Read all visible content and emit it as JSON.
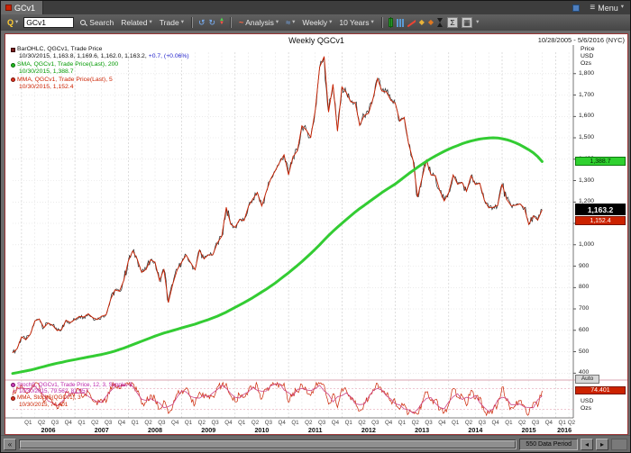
{
  "window": {
    "tab_label": "GCv1",
    "menu_label": "Menu"
  },
  "toolbar": {
    "quote_label": "Q",
    "symbol_value": "GCv1",
    "search_label": "Search",
    "related_label": "Related",
    "trade_label": "Trade",
    "analysis_label": "Analysis",
    "interval_value": "Weekly",
    "range_value": "10 Years"
  },
  "icons": {
    "menu": "≡",
    "caret_down": "▾",
    "back": "↺",
    "forward": "↻",
    "up_arrow": "▲",
    "down_arrow": "▼",
    "analysis_wave": "~",
    "compare": "≈",
    "diamond": "◆",
    "sum": "Σ",
    "grid": "▦",
    "fast_left": "«",
    "step_left": "◂",
    "step_right": "▸"
  },
  "chart_header": {
    "title": "Weekly QGCv1",
    "date_range": "10/28/2005 - 5/6/2016 (NYC)"
  },
  "legend": {
    "line1": "BarOHLC, QGCv1, Trade Price",
    "line2": "10/30/2015, 1,163.8, 1,169.6, 1,162.0, 1,163.2,",
    "line2_change": "+0.7, (+0.06%)",
    "line3": "SMA, QGCv1, Trade Price(Last), 200",
    "line4": "10/30/2015, 1,388.7",
    "line5": "MMA, QGCv1, Trade Price(Last), 5",
    "line6": "10/30/2015, 1,152.4"
  },
  "stoch_legend": {
    "line1": "StochS, QGCv1, Trade Price, 12, 3, Simple, 3",
    "line2": "10/30/2015, 79.562, 81.657",
    "line3": "MMA, StochS(QGCv1), 3",
    "line4": "10/30/2015, 74.401"
  },
  "price_axis": {
    "units": [
      "Price",
      "USD",
      "Ozs"
    ],
    "ticks": [
      "1,800",
      "1,700",
      "1,600",
      "1,500",
      "1,400",
      "1,300",
      "1,200",
      "1,100",
      "1,000",
      "900",
      "800",
      "700",
      "600",
      "500",
      "400"
    ],
    "auto_label": "Auto",
    "last_sma": "1,388.7",
    "last_price": "1,163.2",
    "last_mma": "1,152.4"
  },
  "stoch_axis": {
    "last_value": "74.401",
    "units": [
      "USD",
      "Ozs"
    ]
  },
  "x_axis": {
    "quarters": [
      "Q1",
      "Q2",
      "Q3",
      "Q4"
    ],
    "years": [
      "2006",
      "2007",
      "2008",
      "2009",
      "2010",
      "2011",
      "2012",
      "2013",
      "2014",
      "2015",
      "2016"
    ],
    "final_quarters": [
      "Q1",
      "Q2"
    ]
  },
  "status_bar": {
    "data_period": "550 Data Period"
  },
  "colors": {
    "price_bars": "#2a2a2a",
    "ma5": "#cc2200",
    "sma200": "#33cc33",
    "stoch": "#cc2200",
    "stoch_ma": "#cc4488",
    "change_up": "#2222cc",
    "flag_green_bg": "#2fd12f",
    "flag_red_bg": "#cc2200",
    "flag_black_bg": "#000000"
  },
  "chart_data": {
    "type": "line",
    "title": "Weekly QGCv1",
    "x_start": "10/28/2005",
    "x_end": "5/6/2016",
    "price_ylim": [
      400,
      1800
    ],
    "stoch_ylim": [
      0,
      100
    ],
    "grid": true,
    "last_bar": {
      "date": "10/30/2015",
      "open": 1163.8,
      "high": 1169.6,
      "low": 1162.0,
      "close": 1163.2,
      "change": 0.7,
      "change_pct": 0.06,
      "sma200": 1388.7,
      "mma5": 1152.4,
      "stoch": 79.562,
      "stoch_signal": 81.657,
      "stoch_mma": 74.401
    },
    "series": [
      {
        "name": "QGCv1 Trade Price (monthly samples Nov-2005..Oct-2015)",
        "values": [
          495,
          513,
          569,
          556,
          582,
          644,
          653,
          613,
          634,
          623,
          599,
          603,
          647,
          636,
          651,
          665,
          662,
          677,
          659,
          650,
          666,
          672,
          743,
          789,
          783,
          834,
          923,
          971,
          933,
          871,
          885,
          930,
          918,
          833,
          884,
          730,
          816,
          884,
          919,
          952,
          916,
          883,
          975,
          934,
          953,
          953,
          1008,
          1040,
          1175,
          1096,
          1081,
          1118,
          1113,
          1179,
          1215,
          1244,
          1181,
          1248,
          1307,
          1346,
          1385,
          1421,
          1327,
          1411,
          1439,
          1556,
          1536,
          1502,
          1628,
          1830,
          1880,
          1620,
          1750,
          1531,
          1738,
          1711,
          1668,
          1664,
          1558,
          1604,
          1615,
          1685,
          1776,
          1719,
          1714,
          1675,
          1661,
          1578,
          1595,
          1472,
          1394,
          1224,
          1312,
          1395,
          1327,
          1323,
          1253,
          1205,
          1244,
          1326,
          1283,
          1291,
          1250,
          1322,
          1282,
          1287,
          1208,
          1173,
          1175,
          1184,
          1283,
          1213,
          1183,
          1184,
          1191,
          1171,
          1095,
          1135,
          1115,
          1163
        ]
      },
      {
        "name": "SMA 200-week",
        "values": [
          398,
          402,
          406,
          410,
          414,
          419,
          425,
          430,
          436,
          441,
          446,
          450,
          455,
          459,
          463,
          467,
          471,
          475,
          479,
          483,
          487,
          492,
          497,
          503,
          510,
          517,
          525,
          533,
          541,
          549,
          557,
          565,
          573,
          580,
          587,
          593,
          599,
          605,
          611,
          617,
          623,
          629,
          636,
          643,
          650,
          658,
          666,
          675,
          685,
          696,
          707,
          718,
          729,
          741,
          753,
          766,
          779,
          792,
          806,
          821,
          837,
          853,
          869,
          886,
          903,
          921,
          940,
          959,
          979,
          1000,
          1022,
          1043,
          1063,
          1082,
          1100,
          1118,
          1136,
          1153,
          1169,
          1184,
          1199,
          1214,
          1229,
          1244,
          1258,
          1271,
          1284,
          1300,
          1316,
          1332,
          1347,
          1362,
          1376,
          1390,
          1403,
          1415,
          1426,
          1437,
          1447,
          1456,
          1464,
          1472,
          1479,
          1485,
          1490,
          1494,
          1497,
          1499,
          1500,
          1499,
          1496,
          1491,
          1485,
          1477,
          1467,
          1456,
          1444,
          1430,
          1412,
          1389
        ]
      },
      {
        "name": "StochS 12,3 Simple",
        "values": [
          60,
          85,
          92,
          70,
          78,
          95,
          88,
          40,
          55,
          38,
          22,
          30,
          72,
          60,
          68,
          75,
          58,
          70,
          45,
          32,
          48,
          40,
          85,
          94,
          80,
          90,
          93,
          95,
          72,
          35,
          40,
          62,
          50,
          20,
          45,
          8,
          30,
          65,
          75,
          82,
          55,
          35,
          70,
          52,
          60,
          58,
          85,
          90,
          95,
          60,
          42,
          62,
          55,
          75,
          85,
          90,
          50,
          78,
          92,
          95,
          93,
          96,
          40,
          68,
          72,
          92,
          78,
          60,
          85,
          95,
          90,
          35,
          65,
          25,
          80,
          75,
          48,
          45,
          15,
          40,
          50,
          78,
          95,
          70,
          62,
          45,
          42,
          20,
          35,
          8,
          12,
          5,
          40,
          70,
          45,
          48,
          18,
          10,
          35,
          80,
          55,
          60,
          30,
          75,
          50,
          55,
          12,
          8,
          20,
          35,
          85,
          45,
          25,
          30,
          45,
          30,
          5,
          40,
          28,
          74
        ]
      }
    ]
  }
}
